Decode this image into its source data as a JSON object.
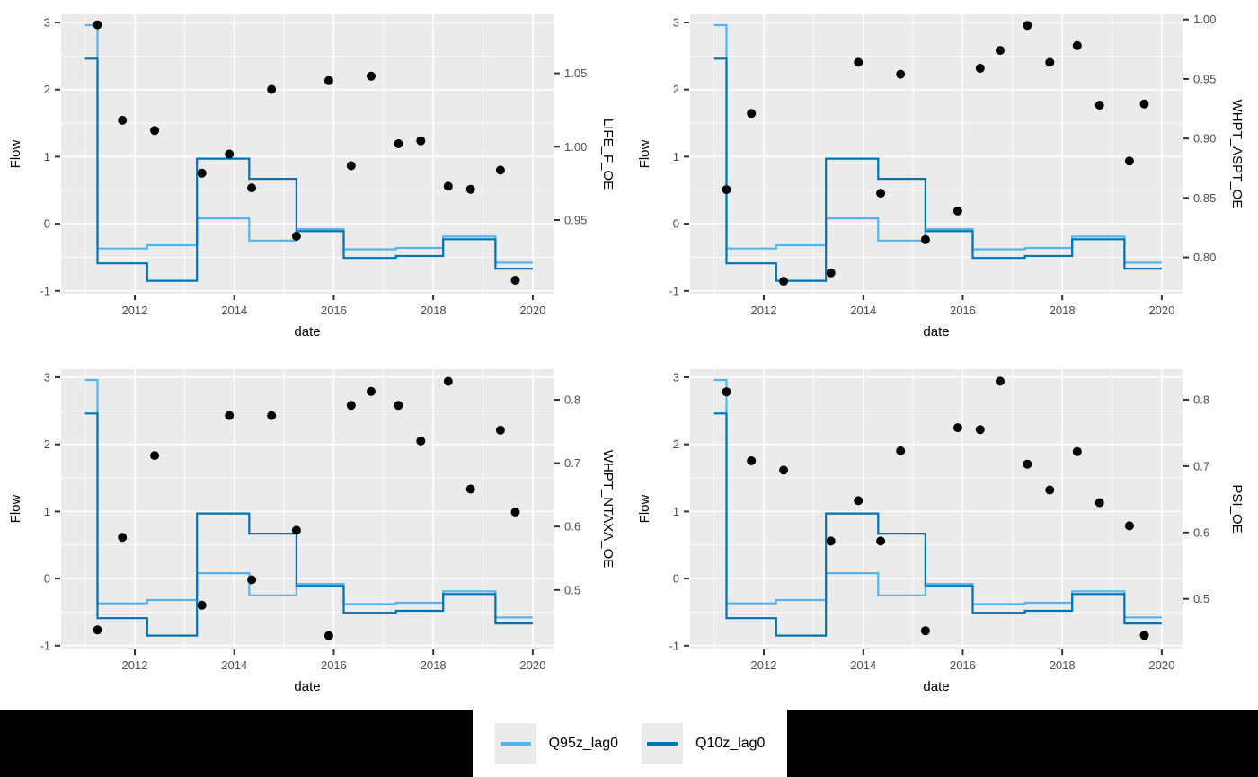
{
  "page": {
    "background": "#ffffff",
    "bottom_bar_color": "#000000",
    "panel_bg": "#ebebeb",
    "grid_color": "#ffffff",
    "tick_label_color": "#4d4d4d",
    "tick_mark_color": "#333333",
    "axis_title_color": "#000000",
    "point_color": "#000000",
    "legend_key_bg": "#ebebeb"
  },
  "chart_data": {
    "type": "step-line+scatter",
    "layout": "2x2 grid of panels, shared flow step-lines, per-panel scatter on secondary right axis, legend bottom center",
    "shared": {
      "x_title": "date",
      "y_left_title": "Flow",
      "x_ticks": [
        2012,
        2014,
        2016,
        2018,
        2020
      ],
      "x_tick_labels": [
        "2012",
        "2014",
        "2016",
        "2018",
        "2020"
      ],
      "x_minor": [
        2011,
        2013,
        2015,
        2017,
        2019
      ],
      "x_range": [
        2010.52,
        2020.42
      ],
      "flow_ticks": [
        -1,
        0,
        1,
        2,
        3
      ],
      "flow_tick_labels": [
        "-1",
        "0",
        "1",
        "2",
        "3"
      ],
      "flow_minor": [
        -0.5,
        0.5,
        1.5,
        2.5
      ],
      "flow_range": [
        -1.05,
        3.12
      ],
      "step_dates": [
        2011.0,
        2011.25,
        2012.25,
        2013.25,
        2014.3,
        2015.25,
        2016.2,
        2017.25,
        2018.2,
        2019.25,
        2020.0
      ],
      "series": [
        {
          "name": "Q95z_lag0",
          "color": "#56B4E9",
          "values": [
            2.96,
            -0.37,
            -0.32,
            0.08,
            -0.25,
            -0.08,
            -0.38,
            -0.36,
            -0.19,
            -0.58
          ]
        },
        {
          "name": "Q10z_lag0",
          "color": "#0072B2",
          "values": [
            2.46,
            -0.59,
            -0.85,
            0.97,
            0.67,
            -0.11,
            -0.51,
            -0.48,
            -0.23,
            -0.67
          ]
        }
      ],
      "point_dates": [
        2011.25,
        2011.75,
        2012.4,
        2013.35,
        2013.9,
        2014.35,
        2014.75,
        2015.25,
        2015.9,
        2016.35,
        2016.75,
        2017.3,
        2017.75,
        2018.3,
        2018.75,
        2019.35,
        2019.65
      ]
    },
    "panels": [
      {
        "sec_title": "LIFE_F_OE",
        "sec_ticks": [
          0.95,
          1.0,
          1.05
        ],
        "sec_tick_labels": [
          "0.95",
          "1.00",
          "1.05"
        ],
        "sec_from_flow": {
          "intercept": 0.9475,
          "slope": 0.0457
        },
        "point_values": [
          1.083,
          1.018,
          1.011,
          0.982,
          0.995,
          0.972,
          1.039,
          0.939,
          1.045,
          0.987,
          1.048,
          1.002,
          1.004,
          0.973,
          0.971,
          0.984,
          0.909
        ]
      },
      {
        "sec_title": "WHPT_ASPT_OE",
        "sec_ticks": [
          0.8,
          0.85,
          0.9,
          0.95,
          1.0
        ],
        "sec_tick_labels": [
          "0.80",
          "0.85",
          "0.90",
          "0.95",
          "1.00"
        ],
        "sec_from_flow": {
          "intercept": 0.8283,
          "slope": 0.0564
        },
        "point_values": [
          0.857,
          0.921,
          0.78,
          0.787,
          0.964,
          0.854,
          0.954,
          0.815,
          0.839,
          0.959,
          0.974,
          0.995,
          0.964,
          0.978,
          0.928,
          0.881,
          0.929
        ]
      },
      {
        "sec_title": "WHPT_NTAXA_OE",
        "sec_ticks": [
          0.5,
          0.6,
          0.7,
          0.8
        ],
        "sec_tick_labels": [
          "0.5",
          "0.6",
          "0.7",
          "0.8"
        ],
        "sec_from_flow": {
          "intercept": 0.518,
          "slope": 0.1058
        },
        "point_values": [
          0.437,
          0.583,
          0.712,
          0.476,
          0.775,
          0.516,
          0.775,
          0.594,
          0.428,
          0.791,
          0.813,
          0.791,
          0.735,
          0.829,
          0.659,
          0.752,
          0.623
        ]
      },
      {
        "sec_title": "PSI_OE",
        "sec_ticks": [
          0.5,
          0.6,
          0.7,
          0.8
        ],
        "sec_tick_labels": [
          "0.5",
          "0.6",
          "0.7",
          "0.8"
        ],
        "sec_from_flow": {
          "intercept": 0.5306,
          "slope": 0.1011
        },
        "point_values": [
          0.812,
          0.708,
          0.694,
          0.587,
          0.648,
          0.587,
          0.723,
          0.452,
          0.758,
          0.755,
          0.828,
          0.703,
          0.664,
          0.722,
          0.645,
          0.61,
          0.445
        ]
      }
    ]
  }
}
